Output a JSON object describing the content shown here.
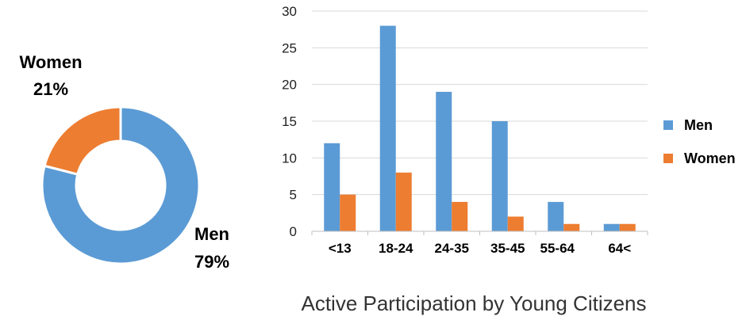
{
  "chart_data": [
    {
      "type": "pie",
      "donut": true,
      "slices": [
        {
          "label": "Men",
          "percent_label": "79%",
          "value": 79,
          "color": "#5B9BD5"
        },
        {
          "label": "Women",
          "percent_label": "21%",
          "value": 21,
          "color": "#ED7D31"
        }
      ]
    },
    {
      "type": "bar",
      "title": "Active Participation by Young Citizens",
      "categories": [
        "<13",
        "18-24",
        "24-35",
        "35-45",
        "55-64",
        "64<"
      ],
      "series": [
        {
          "name": "Men",
          "values": [
            12,
            28,
            19,
            15,
            4,
            1
          ],
          "color": "#5B9BD5"
        },
        {
          "name": "Women",
          "values": [
            5,
            8,
            4,
            2,
            1,
            1
          ],
          "color": "#ED7D31"
        }
      ],
      "ylim": [
        0,
        30
      ],
      "yticks": [
        "0",
        "5",
        "10",
        "15",
        "20",
        "25",
        "30"
      ],
      "grid": true,
      "legend": "right"
    }
  ]
}
